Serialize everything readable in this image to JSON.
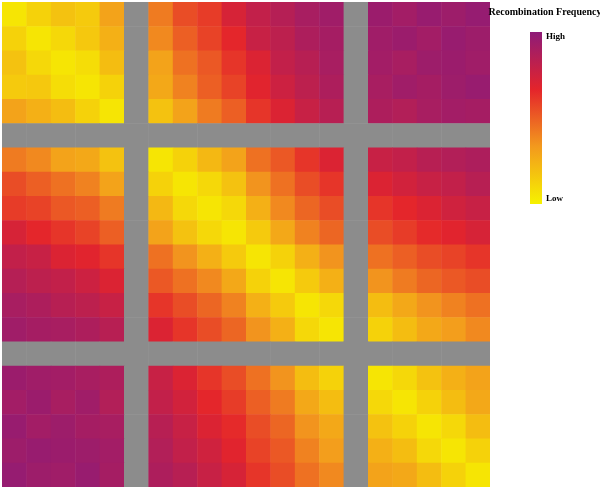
{
  "chart_data": {
    "type": "heatmap",
    "title": "Recombination Frequency",
    "tick_labels": false,
    "colors": [
      "#f6f200",
      "#f39a1d",
      "#e4242b",
      "#8e1b78"
    ],
    "colorbar": {
      "range": [
        0,
        1
      ],
      "ticks": [
        {
          "value": 1,
          "label": "High"
        },
        {
          "value": 0,
          "label": "Low"
        }
      ]
    },
    "cells": [
      [
        0.05,
        0.12,
        0.18,
        0.15,
        0.3,
        null,
        0.42,
        0.55,
        0.6,
        0.72,
        0.8,
        0.85,
        0.9,
        0.93,
        null,
        0.95,
        0.92,
        0.96,
        0.94,
        0.97
      ],
      [
        0.12,
        0.05,
        0.1,
        0.16,
        0.25,
        null,
        0.38,
        0.5,
        0.58,
        0.66,
        0.78,
        0.82,
        0.88,
        0.91,
        null,
        0.93,
        0.95,
        0.92,
        0.96,
        0.94
      ],
      [
        0.18,
        0.1,
        0.05,
        0.08,
        0.2,
        null,
        0.3,
        0.45,
        0.52,
        0.62,
        0.7,
        0.8,
        0.84,
        0.9,
        null,
        0.92,
        0.9,
        0.94,
        0.95,
        0.93
      ],
      [
        0.15,
        0.16,
        0.08,
        0.05,
        0.12,
        null,
        0.28,
        0.4,
        0.5,
        0.58,
        0.68,
        0.76,
        0.82,
        0.88,
        null,
        0.9,
        0.93,
        0.91,
        0.94,
        0.96
      ],
      [
        0.3,
        0.25,
        0.2,
        0.12,
        0.05,
        null,
        0.18,
        0.3,
        0.42,
        0.5,
        0.62,
        0.7,
        0.78,
        0.84,
        null,
        0.88,
        0.86,
        0.9,
        0.92,
        0.91
      ],
      [
        null,
        null,
        null,
        null,
        null,
        null,
        null,
        null,
        null,
        null,
        null,
        null,
        null,
        null,
        null,
        null,
        null,
        null,
        null,
        null
      ],
      [
        0.42,
        0.38,
        0.3,
        0.28,
        0.18,
        null,
        0.05,
        0.12,
        0.22,
        0.3,
        0.45,
        0.52,
        0.62,
        0.7,
        null,
        0.78,
        0.8,
        0.84,
        0.86,
        0.88
      ],
      [
        0.55,
        0.5,
        0.45,
        0.4,
        0.3,
        null,
        0.12,
        0.05,
        0.1,
        0.18,
        0.35,
        0.45,
        0.55,
        0.62,
        null,
        0.7,
        0.74,
        0.78,
        0.8,
        0.84
      ],
      [
        0.6,
        0.58,
        0.52,
        0.5,
        0.42,
        null,
        0.22,
        0.1,
        0.05,
        0.1,
        0.25,
        0.38,
        0.48,
        0.55,
        null,
        0.62,
        0.66,
        0.7,
        0.75,
        0.78
      ],
      [
        0.72,
        0.66,
        0.62,
        0.58,
        0.5,
        null,
        0.3,
        0.18,
        0.1,
        0.05,
        0.15,
        0.28,
        0.4,
        0.48,
        null,
        0.55,
        0.6,
        0.65,
        0.68,
        0.72
      ],
      [
        0.8,
        0.78,
        0.7,
        0.68,
        0.62,
        null,
        0.45,
        0.35,
        0.25,
        0.15,
        0.05,
        0.12,
        0.25,
        0.35,
        null,
        0.45,
        0.5,
        0.55,
        0.58,
        0.62
      ],
      [
        0.85,
        0.82,
        0.8,
        0.76,
        0.7,
        null,
        0.52,
        0.45,
        0.38,
        0.28,
        0.12,
        0.05,
        0.15,
        0.25,
        null,
        0.35,
        0.42,
        0.48,
        0.52,
        0.55
      ],
      [
        0.9,
        0.88,
        0.84,
        0.82,
        0.78,
        null,
        0.62,
        0.55,
        0.48,
        0.4,
        0.25,
        0.15,
        0.05,
        0.1,
        null,
        0.2,
        0.28,
        0.35,
        0.4,
        0.45
      ],
      [
        0.93,
        0.91,
        0.9,
        0.88,
        0.84,
        null,
        0.7,
        0.62,
        0.55,
        0.48,
        0.35,
        0.25,
        0.1,
        0.05,
        null,
        0.12,
        0.2,
        0.28,
        0.32,
        0.38
      ],
      [
        null,
        null,
        null,
        null,
        null,
        null,
        null,
        null,
        null,
        null,
        null,
        null,
        null,
        null,
        null,
        null,
        null,
        null,
        null,
        null
      ],
      [
        0.95,
        0.93,
        0.92,
        0.9,
        0.88,
        null,
        0.78,
        0.7,
        0.62,
        0.55,
        0.45,
        0.35,
        0.2,
        0.12,
        null,
        0.05,
        0.1,
        0.18,
        0.25,
        0.3
      ],
      [
        0.92,
        0.95,
        0.9,
        0.93,
        0.86,
        null,
        0.8,
        0.74,
        0.66,
        0.6,
        0.5,
        0.42,
        0.28,
        0.2,
        null,
        0.1,
        0.05,
        0.12,
        0.2,
        0.28
      ],
      [
        0.96,
        0.92,
        0.94,
        0.91,
        0.9,
        null,
        0.84,
        0.78,
        0.7,
        0.65,
        0.55,
        0.48,
        0.35,
        0.28,
        null,
        0.18,
        0.12,
        0.05,
        0.1,
        0.2
      ],
      [
        0.94,
        0.96,
        0.95,
        0.94,
        0.92,
        null,
        0.86,
        0.8,
        0.75,
        0.68,
        0.58,
        0.52,
        0.4,
        0.32,
        null,
        0.25,
        0.2,
        0.1,
        0.05,
        0.12
      ],
      [
        0.97,
        0.94,
        0.93,
        0.96,
        0.91,
        null,
        0.88,
        0.84,
        0.78,
        0.72,
        0.62,
        0.55,
        0.45,
        0.38,
        null,
        0.3,
        0.28,
        0.2,
        0.12,
        0.05
      ]
    ]
  }
}
